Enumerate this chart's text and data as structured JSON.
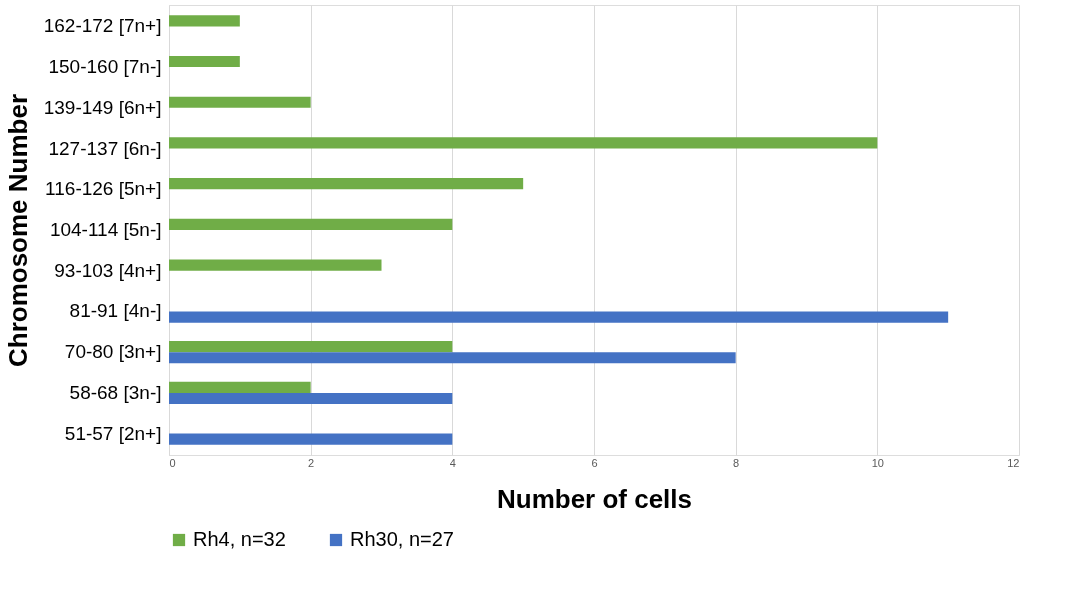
{
  "chart_data": {
    "type": "bar",
    "orientation": "horizontal",
    "xlabel": "Number of cells",
    "ylabel": "Chromosome Number",
    "categories": [
      "162-172 [7n+]",
      "150-160 [7n-]",
      "139-149 [6n+]",
      "127-137 [6n-]",
      "116-126 [5n+]",
      "104-114 [5n-]",
      "93-103 [4n+]",
      "81-91 [4n-]",
      "70-80 [3n+]",
      "58-68 [3n-]",
      "51-57 [2n+]"
    ],
    "series": [
      {
        "name": "Rh4, n=32",
        "color": "#70ad47",
        "values": [
          1,
          1,
          2,
          10,
          5,
          4,
          3,
          0,
          4,
          2,
          0
        ]
      },
      {
        "name": "Rh30, n=27",
        "color": "#4472c4",
        "values": [
          0,
          0,
          0,
          0,
          0,
          0,
          0,
          11,
          8,
          4,
          4
        ]
      }
    ],
    "xlim": [
      0,
      12
    ],
    "xticks": [
      0,
      2,
      4,
      6,
      8,
      10,
      12
    ],
    "grid": "x",
    "legend": "bottom"
  }
}
